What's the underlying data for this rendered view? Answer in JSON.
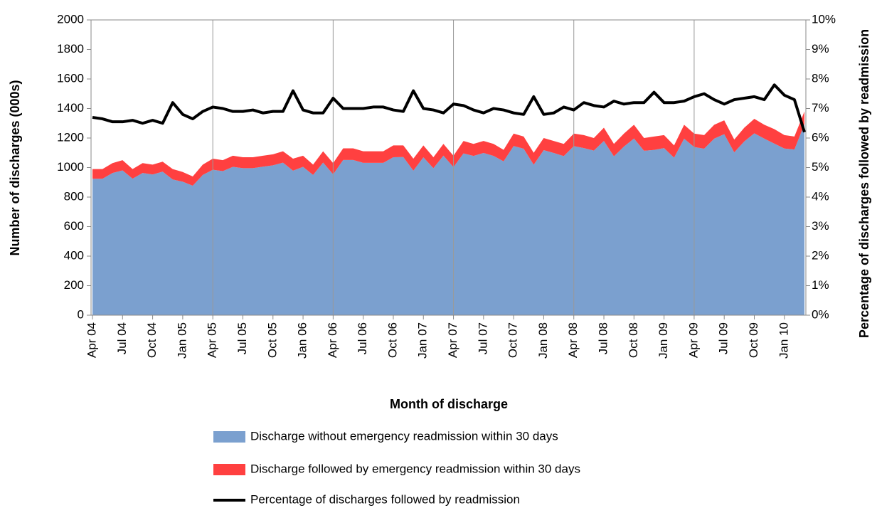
{
  "chart_data": {
    "type": "stacked_area_line",
    "xlabel": "Month of discharge",
    "ylabel": "Number of discharges (000s)",
    "y2label": "Percentage of discharges followed by readmission",
    "categories": [
      "Apr 04",
      null,
      null,
      "Jul 04",
      null,
      null,
      "Oct 04",
      null,
      null,
      "Jan 05",
      null,
      null,
      "Apr 05",
      null,
      null,
      "Jul 05",
      null,
      null,
      "Oct 05",
      null,
      null,
      "Jan 06",
      null,
      null,
      "Apr 06",
      null,
      null,
      "Jul 06",
      null,
      null,
      "Oct 06",
      null,
      null,
      "Jan 07",
      null,
      null,
      "Apr 07",
      null,
      null,
      "Jul 07",
      null,
      null,
      "Oct 07",
      null,
      null,
      "Jan 08",
      null,
      null,
      "Apr 08",
      null,
      null,
      "Jul 08",
      null,
      null,
      "Oct 08",
      null,
      null,
      "Jan 09",
      null,
      null,
      "Apr 09",
      null,
      null,
      "Jul 09",
      null,
      null,
      "Oct 09",
      null,
      null,
      "Jan 10",
      null,
      null
    ],
    "series": [
      {
        "name": "Discharge without emergency readmission within 30 days",
        "color": "#7ba0cf",
        "values": [
          924,
          924,
          963,
          981,
          925,
          963,
          953,
          972,
          919,
          904,
          877,
          950,
          985,
          976,
          1005,
          996,
          996,
          1006,
          1015,
          1033,
          979,
          1005,
          950,
          1034,
          954,
          1051,
          1051,
          1032,
          1032,
          1032,
          1070,
          1071,
          979,
          1069,
          996,
          1081,
          1003,
          1096,
          1079,
          1099,
          1079,
          1042,
          1146,
          1128,
          1019,
          1118,
          1099,
          1078,
          1145,
          1132,
          1115,
          1180,
          1076,
          1142,
          1197,
          1114,
          1119,
          1132,
          1067,
          1196,
          1139,
          1128,
          1196,
          1226,
          1103,
          1177,
          1232,
          1196,
          1162,
          1129,
          1122,
          1294
        ]
      },
      {
        "name": "Discharge followed by emergency readmission within 30 days",
        "color": "#ff4040",
        "values": [
          66,
          66,
          67,
          69,
          65,
          67,
          67,
          68,
          71,
          66,
          63,
          70,
          75,
          74,
          75,
          74,
          74,
          74,
          75,
          77,
          81,
          75,
          70,
          76,
          76,
          79,
          79,
          78,
          78,
          78,
          80,
          79,
          81,
          81,
          74,
          79,
          77,
          84,
          81,
          81,
          81,
          78,
          84,
          82,
          81,
          82,
          81,
          82,
          85,
          88,
          85,
          90,
          84,
          88,
          93,
          86,
          91,
          88,
          83,
          94,
          91,
          92,
          94,
          94,
          87,
          93,
          98,
          94,
          98,
          91,
          88,
          86
        ]
      },
      {
        "name": "Percentage of discharges followed by readmission",
        "color": "#000000",
        "axis": "y2",
        "values": [
          6.7,
          6.65,
          6.55,
          6.55,
          6.6,
          6.5,
          6.6,
          6.5,
          7.2,
          6.8,
          6.65,
          6.9,
          7.05,
          7.0,
          6.9,
          6.9,
          6.95,
          6.85,
          6.9,
          6.9,
          7.6,
          6.95,
          6.85,
          6.85,
          7.35,
          7.0,
          7.0,
          7.0,
          7.05,
          7.05,
          6.95,
          6.9,
          7.6,
          7.0,
          6.95,
          6.85,
          7.15,
          7.1,
          6.95,
          6.85,
          7.0,
          6.95,
          6.85,
          6.8,
          7.4,
          6.8,
          6.85,
          7.05,
          6.95,
          7.2,
          7.1,
          7.05,
          7.25,
          7.15,
          7.2,
          7.2,
          7.55,
          7.2,
          7.2,
          7.25,
          7.4,
          7.5,
          7.3,
          7.15,
          7.3,
          7.35,
          7.4,
          7.3,
          7.8,
          7.45,
          7.3,
          6.2
        ]
      }
    ],
    "ylim": [
      0,
      2000
    ],
    "yticks": [
      0,
      200,
      400,
      600,
      800,
      1000,
      1200,
      1400,
      1600,
      1800,
      2000
    ],
    "y2lim": [
      0,
      10
    ],
    "y2ticks": [
      {
        "value": 0,
        "label": "0%"
      },
      {
        "value": 1,
        "label": "1%"
      },
      {
        "value": 2,
        "label": "2%"
      },
      {
        "value": 3,
        "label": "3%"
      },
      {
        "value": 4,
        "label": "4%"
      },
      {
        "value": 5,
        "label": "5%"
      },
      {
        "value": 6,
        "label": "6%"
      },
      {
        "value": 7,
        "label": "7%"
      },
      {
        "value": 8,
        "label": "8%"
      },
      {
        "value": 9,
        "label": "9%"
      },
      {
        "value": 10,
        "label": "10%"
      }
    ],
    "grid": true
  }
}
